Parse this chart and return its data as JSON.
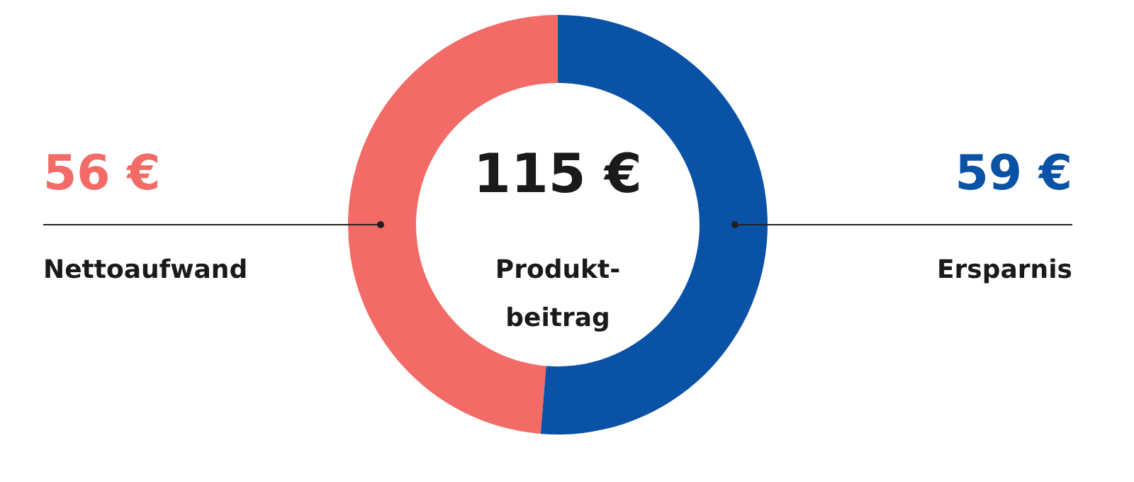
{
  "chart_data": {
    "type": "donut",
    "categories": [
      "Nettoaufwand",
      "Ersparnis"
    ],
    "values": [
      56,
      59
    ],
    "colors": [
      "#f26b66",
      "#0a52a5"
    ],
    "value_labels": [
      "56 €",
      "59 €"
    ],
    "annotations": [
      "115 €",
      "Produkt-\nbeitrag"
    ]
  }
}
